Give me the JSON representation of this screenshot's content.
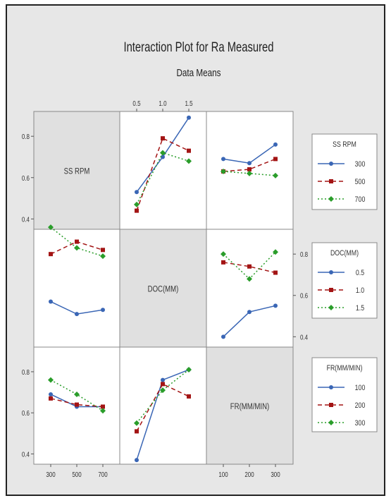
{
  "title": "Interaction Plot for Ra Measured",
  "subtitle": "Data Means",
  "colors": {
    "outer_bg": "#ffffff",
    "figure_bg": "#e7e7e7",
    "cell_bg": "#ffffff",
    "diag_bg": "#e0e0e0",
    "series": [
      "#3a66b5",
      "#a31414",
      "#2a9d2a"
    ]
  },
  "factors": [
    {
      "name": "SS RPM",
      "levels": [
        "300",
        "500",
        "700"
      ]
    },
    {
      "name": "DOC(MM)",
      "levels": [
        "0.5",
        "1.0",
        "1.5"
      ]
    },
    {
      "name": "FR(MM/MIN)",
      "levels": [
        "100",
        "200",
        "300"
      ]
    }
  ],
  "top_ticks": [
    "0.5",
    "1.0",
    "1.5"
  ],
  "bottom_ticks": [
    "300",
    "500",
    "700",
    "100",
    "200",
    "300"
  ],
  "left_ticks": [
    [
      "0.8",
      "0.6",
      "0.4"
    ],
    [
      "0.8",
      "0.6",
      "0.4"
    ]
  ],
  "right_ticks": [
    "0.8",
    "0.6",
    "0.4"
  ],
  "legends": [
    {
      "title": "SS RPM",
      "entries": [
        "300",
        "500",
        "700"
      ]
    },
    {
      "title": "DOC(MM)",
      "entries": [
        "0.5",
        "1.0",
        "1.5"
      ]
    },
    {
      "title": "FR(MM/MIN)",
      "entries": [
        "100",
        "200",
        "300"
      ]
    }
  ],
  "chart_data": {
    "type": "line",
    "title": "Interaction Plot for Ra Measured",
    "subtitle": "Data Means",
    "ylim": [
      0.35,
      0.92
    ],
    "panels": [
      {
        "row_factor": "SS RPM",
        "col_factor": "DOC(MM)",
        "x": [
          "0.5",
          "1.0",
          "1.5"
        ],
        "series": [
          {
            "name": "300",
            "values": [
              0.53,
              0.7,
              0.89
            ]
          },
          {
            "name": "500",
            "values": [
              0.44,
              0.79,
              0.73
            ]
          },
          {
            "name": "700",
            "values": [
              0.47,
              0.72,
              0.68
            ]
          }
        ]
      },
      {
        "row_factor": "SS RPM",
        "col_factor": "FR(MM/MIN)",
        "x": [
          "100",
          "200",
          "300"
        ],
        "series": [
          {
            "name": "300",
            "values": [
              0.69,
              0.67,
              0.76
            ]
          },
          {
            "name": "500",
            "values": [
              0.63,
              0.64,
              0.69
            ]
          },
          {
            "name": "700",
            "values": [
              0.63,
              0.62,
              0.61
            ]
          }
        ]
      },
      {
        "row_factor": "DOC(MM)",
        "col_factor": "SS RPM",
        "x": [
          "300",
          "500",
          "700"
        ],
        "series": [
          {
            "name": "0.5",
            "values": [
              0.57,
              0.51,
              0.53
            ]
          },
          {
            "name": "1.0",
            "values": [
              0.8,
              0.86,
              0.82
            ]
          },
          {
            "name": "1.5",
            "values": [
              0.93,
              0.83,
              0.79
            ]
          }
        ]
      },
      {
        "row_factor": "DOC(MM)",
        "col_factor": "FR(MM/MIN)",
        "x": [
          "100",
          "200",
          "300"
        ],
        "series": [
          {
            "name": "0.5",
            "values": [
              0.4,
              0.52,
              0.55
            ]
          },
          {
            "name": "1.0",
            "values": [
              0.76,
              0.74,
              0.71
            ]
          },
          {
            "name": "1.5",
            "values": [
              0.8,
              0.68,
              0.81
            ]
          }
        ]
      },
      {
        "row_factor": "FR(MM/MIN)",
        "col_factor": "SS RPM",
        "x": [
          "300",
          "500",
          "700"
        ],
        "series": [
          {
            "name": "100",
            "values": [
              0.69,
              0.63,
              0.63
            ]
          },
          {
            "name": "200",
            "values": [
              0.67,
              0.64,
              0.63
            ]
          },
          {
            "name": "300",
            "values": [
              0.76,
              0.69,
              0.61
            ]
          }
        ]
      },
      {
        "row_factor": "FR(MM/MIN)",
        "col_factor": "DOC(MM)",
        "x": [
          "0.5",
          "1.0",
          "1.5"
        ],
        "series": [
          {
            "name": "100",
            "values": [
              0.37,
              0.76,
              0.81
            ]
          },
          {
            "name": "200",
            "values": [
              0.51,
              0.74,
              0.68
            ]
          },
          {
            "name": "300",
            "values": [
              0.55,
              0.71,
              0.81
            ]
          }
        ]
      }
    ]
  }
}
